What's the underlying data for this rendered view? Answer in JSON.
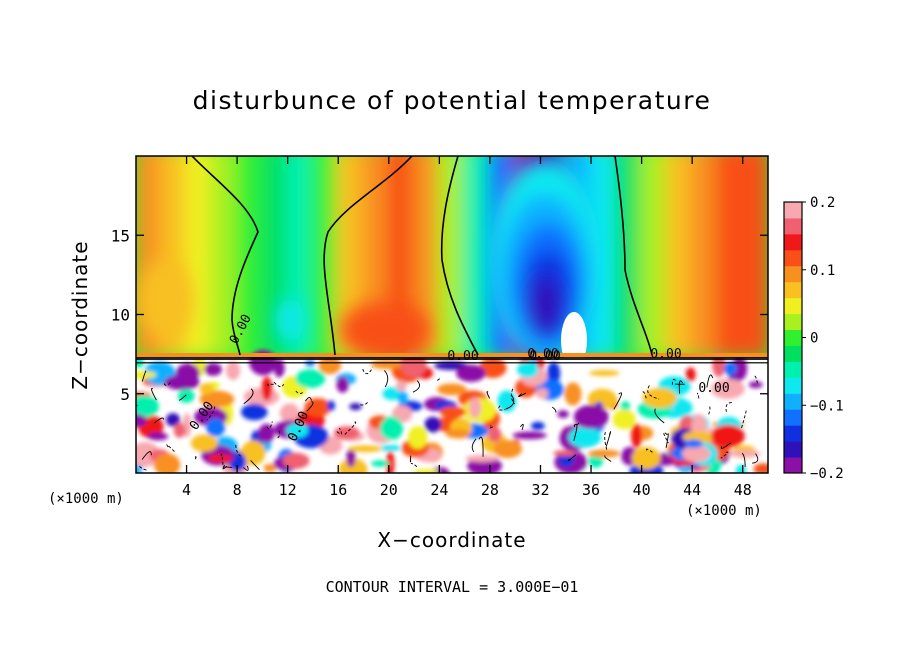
{
  "chart_data": {
    "type": "heatmap",
    "title": "disturbunce of potential temperature",
    "xlabel": "X−coordinate",
    "ylabel": "Z−coordinate",
    "x_unit": "(×1000 m)",
    "x_unit_repeat": "(×1000 m)",
    "xlim": [
      0,
      50
    ],
    "ylim": [
      0,
      20
    ],
    "x_ticks": [
      4,
      8,
      12,
      16,
      20,
      24,
      28,
      32,
      36,
      40,
      44,
      48
    ],
    "y_ticks": [
      5,
      10,
      15
    ],
    "colorbar": {
      "range": [
        -0.2,
        0.2
      ],
      "tick_values": [
        0.2,
        0.1,
        0,
        -0.1,
        -0.2
      ],
      "tick_labels": [
        "0.2",
        "0.1",
        "0",
        "−0.1",
        "−0.2"
      ],
      "colors": [
        "#8b10a8",
        "#3010b8",
        "#1030e0",
        "#1070ff",
        "#10b0ff",
        "#10e8f0",
        "#00f0b0",
        "#00e060",
        "#30f030",
        "#a8f020",
        "#f0f020",
        "#f8c020",
        "#f89020",
        "#f85018",
        "#f01818",
        "#f06070",
        "#f8a8b0"
      ]
    },
    "contour_labels": [
      "0.00",
      "0.00",
      "0.00",
      "0.00",
      "0.00",
      "0.00",
      "0.00",
      "0.00"
    ],
    "contour_interval_text": "CONTOUR INTERVAL = 3.000E−01",
    "upper_field_columns": [
      {
        "x": 1,
        "value": 0.1
      },
      {
        "x": 3,
        "value": 0.07
      },
      {
        "x": 5,
        "value": 0.04
      },
      {
        "x": 7,
        "value": 0.03
      },
      {
        "x": 9,
        "value": 0.0
      },
      {
        "x": 11,
        "value": -0.02
      },
      {
        "x": 13,
        "value": -0.04
      },
      {
        "x": 15,
        "value": 0.0
      },
      {
        "x": 17,
        "value": 0.06
      },
      {
        "x": 19,
        "value": 0.1
      },
      {
        "x": 21,
        "value": 0.12
      },
      {
        "x": 23,
        "value": 0.1
      },
      {
        "x": 25,
        "value": 0.03
      },
      {
        "x": 27,
        "value": -0.05
      },
      {
        "x": 29,
        "value": -0.12
      },
      {
        "x": 31,
        "value": -0.18
      },
      {
        "x": 33,
        "value": -0.16
      },
      {
        "x": 35,
        "value": -0.1
      },
      {
        "x": 37,
        "value": -0.06
      },
      {
        "x": 39,
        "value": -0.02
      },
      {
        "x": 41,
        "value": 0.03
      },
      {
        "x": 43,
        "value": 0.06
      },
      {
        "x": 45,
        "value": 0.09
      },
      {
        "x": 47,
        "value": 0.11
      },
      {
        "x": 49,
        "value": 0.12
      }
    ]
  }
}
